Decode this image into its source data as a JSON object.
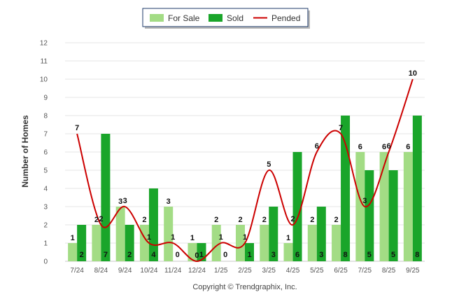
{
  "chart_data": {
    "type": "bar",
    "categories": [
      "7/24",
      "8/24",
      "9/24",
      "10/24",
      "11/24",
      "12/24",
      "1/25",
      "2/25",
      "3/25",
      "4/25",
      "5/25",
      "6/25",
      "7/25",
      "8/25",
      "9/25"
    ],
    "series": [
      {
        "name": "For Sale",
        "type": "bar",
        "color": "#a3dc85",
        "values": [
          1,
          2,
          3,
          2,
          3,
          1,
          2,
          2,
          2,
          1,
          2,
          2,
          6,
          6,
          6
        ]
      },
      {
        "name": "Sold",
        "type": "bar",
        "color": "#1aa52a",
        "values": [
          2,
          7,
          2,
          4,
          0,
          1,
          0,
          1,
          3,
          6,
          3,
          8,
          5,
          5,
          8
        ]
      },
      {
        "name": "Pended",
        "type": "line",
        "color": "#cc0000",
        "values": [
          7,
          2,
          3,
          1,
          1,
          0,
          1,
          1,
          5,
          2,
          6,
          7,
          3,
          6,
          10
        ]
      }
    ],
    "ylabel": "Number of Homes",
    "xlabel": "",
    "ylim": [
      0,
      12
    ],
    "yticks": [
      0,
      1,
      2,
      3,
      4,
      5,
      6,
      7,
      8,
      9,
      10,
      11,
      12
    ],
    "grid": true,
    "legend_position": "top-center",
    "credit": "Copyright © Trendgraphix, Inc."
  }
}
